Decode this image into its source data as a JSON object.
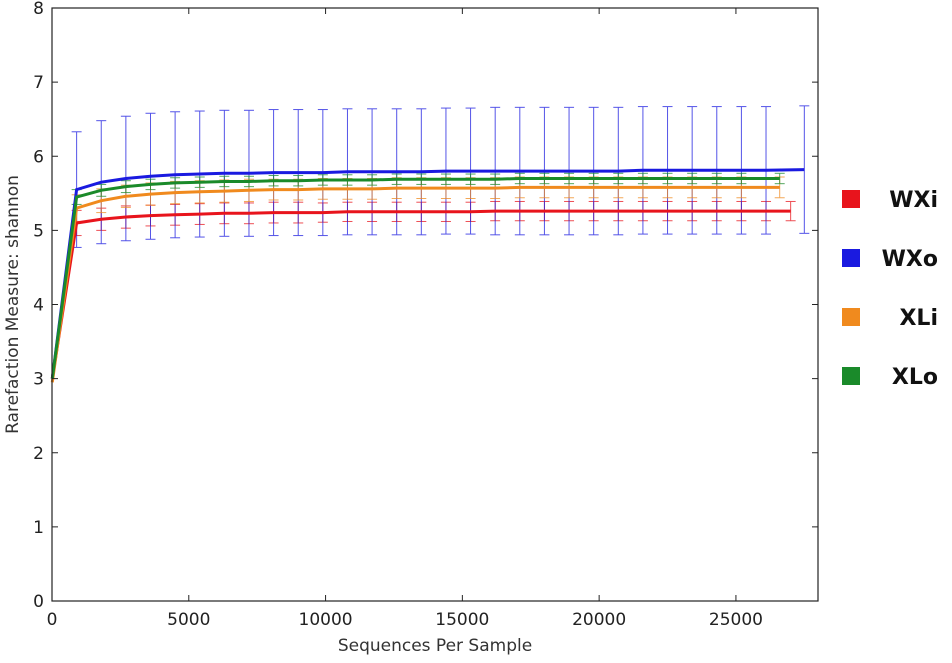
{
  "chart_data": {
    "type": "line",
    "xlabel": "Sequences Per Sample",
    "ylabel": "Rarefaction Measure: shannon",
    "xlim": [
      0,
      28000
    ],
    "ylim": [
      0,
      8
    ],
    "xticks": [
      0,
      5000,
      10000,
      15000,
      20000,
      25000
    ],
    "yticks": [
      0,
      1,
      2,
      3,
      4,
      5,
      6,
      7,
      8
    ],
    "grid": false,
    "legend_position": "right",
    "series": [
      {
        "name": "WXi",
        "color": "#e8141c",
        "x": [
          10,
          900,
          1800,
          2700,
          3600,
          4500,
          5400,
          6300,
          7200,
          8100,
          9000,
          9900,
          10800,
          11700,
          12600,
          13500,
          14400,
          15300,
          16200,
          17100,
          18000,
          18900,
          19800,
          20700,
          21600,
          22500,
          23400,
          24300,
          25200,
          26100,
          27000
        ],
        "y": [
          3.0,
          5.1,
          5.15,
          5.18,
          5.2,
          5.21,
          5.22,
          5.23,
          5.23,
          5.24,
          5.24,
          5.24,
          5.25,
          5.25,
          5.25,
          5.25,
          5.25,
          5.25,
          5.26,
          5.26,
          5.26,
          5.26,
          5.26,
          5.26,
          5.26,
          5.26,
          5.26,
          5.26,
          5.26,
          5.26,
          5.26
        ],
        "err": [
          0.2,
          0.17,
          0.15,
          0.15,
          0.14,
          0.14,
          0.14,
          0.14,
          0.14,
          0.14,
          0.14,
          0.13,
          0.13,
          0.13,
          0.13,
          0.13,
          0.13,
          0.13,
          0.13,
          0.13,
          0.13,
          0.13,
          0.13,
          0.13,
          0.13,
          0.13,
          0.13,
          0.13,
          0.13,
          0.13,
          0.13
        ]
      },
      {
        "name": "WXo",
        "color": "#1a1ae0",
        "x": [
          10,
          900,
          1800,
          2700,
          3600,
          4500,
          5400,
          6300,
          7200,
          8100,
          9000,
          9900,
          10800,
          11700,
          12600,
          13500,
          14400,
          15300,
          16200,
          17100,
          18000,
          18900,
          19800,
          20700,
          21600,
          22500,
          23400,
          24300,
          25200,
          26100,
          27500
        ],
        "y": [
          3.0,
          5.55,
          5.65,
          5.7,
          5.73,
          5.75,
          5.76,
          5.77,
          5.77,
          5.78,
          5.78,
          5.78,
          5.79,
          5.79,
          5.79,
          5.79,
          5.8,
          5.8,
          5.8,
          5.8,
          5.8,
          5.8,
          5.8,
          5.8,
          5.81,
          5.81,
          5.81,
          5.81,
          5.81,
          5.81,
          5.82
        ],
        "err": [
          0.2,
          0.78,
          0.83,
          0.84,
          0.85,
          0.85,
          0.85,
          0.85,
          0.85,
          0.85,
          0.85,
          0.85,
          0.85,
          0.85,
          0.85,
          0.85,
          0.85,
          0.85,
          0.86,
          0.86,
          0.86,
          0.86,
          0.86,
          0.86,
          0.86,
          0.86,
          0.86,
          0.86,
          0.86,
          0.86,
          0.86
        ]
      },
      {
        "name": "XLi",
        "color": "#f08a1e",
        "x": [
          10,
          900,
          1800,
          2700,
          3600,
          4500,
          5400,
          6300,
          7200,
          8100,
          9000,
          9900,
          10800,
          11700,
          12600,
          13500,
          14400,
          15300,
          16200,
          17100,
          18000,
          18900,
          19800,
          20700,
          21600,
          22500,
          23400,
          24300,
          25200,
          26600
        ],
        "y": [
          2.95,
          5.3,
          5.4,
          5.46,
          5.49,
          5.51,
          5.52,
          5.53,
          5.54,
          5.55,
          5.55,
          5.56,
          5.56,
          5.56,
          5.57,
          5.57,
          5.57,
          5.57,
          5.57,
          5.58,
          5.58,
          5.58,
          5.58,
          5.58,
          5.58,
          5.58,
          5.58,
          5.58,
          5.58,
          5.58
        ],
        "err": [
          0.18,
          0.18,
          0.16,
          0.15,
          0.15,
          0.15,
          0.15,
          0.15,
          0.15,
          0.14,
          0.14,
          0.14,
          0.14,
          0.14,
          0.14,
          0.14,
          0.14,
          0.14,
          0.14,
          0.14,
          0.14,
          0.14,
          0.14,
          0.14,
          0.14,
          0.14,
          0.14,
          0.14,
          0.14,
          0.14
        ]
      },
      {
        "name": "XLo",
        "color": "#1a8a2a",
        "x": [
          10,
          900,
          1800,
          2700,
          3600,
          4500,
          5400,
          6300,
          7200,
          8100,
          9000,
          9900,
          10800,
          11700,
          12600,
          13500,
          14400,
          15300,
          16200,
          17100,
          18000,
          18900,
          19800,
          20700,
          21600,
          22500,
          23400,
          24300,
          25200,
          26600
        ],
        "y": [
          3.0,
          5.45,
          5.54,
          5.59,
          5.62,
          5.64,
          5.65,
          5.66,
          5.66,
          5.67,
          5.67,
          5.68,
          5.68,
          5.68,
          5.69,
          5.69,
          5.69,
          5.69,
          5.69,
          5.7,
          5.7,
          5.7,
          5.7,
          5.7,
          5.7,
          5.7,
          5.7,
          5.7,
          5.7,
          5.7
        ],
        "err": [
          0.15,
          0.1,
          0.08,
          0.08,
          0.07,
          0.07,
          0.07,
          0.07,
          0.07,
          0.07,
          0.07,
          0.07,
          0.07,
          0.07,
          0.07,
          0.07,
          0.07,
          0.07,
          0.07,
          0.07,
          0.07,
          0.07,
          0.07,
          0.07,
          0.07,
          0.07,
          0.07,
          0.07,
          0.07,
          0.07
        ]
      }
    ]
  }
}
